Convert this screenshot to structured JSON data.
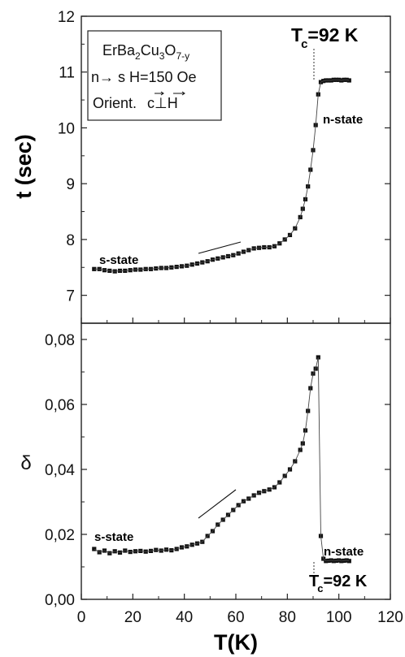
{
  "chart_data": [
    {
      "type": "scatter",
      "panel": "top",
      "ylabel": "t (sec)",
      "xlim": [
        0,
        120
      ],
      "ylim": [
        6.5,
        12
      ],
      "yticks": [
        "7",
        "8",
        "9",
        "10",
        "11",
        "12"
      ],
      "annotations": {
        "tc_main": "T",
        "tc_sub": "c",
        "tc_value": "=92 K",
        "s_state": "s-state",
        "n_state": "n-state",
        "box_line1_a": "ErBa",
        "box_line1_b": "2",
        "box_line1_c": "Cu",
        "box_line1_d": "3",
        "box_line1_e": "O",
        "box_line1_f": "7-y",
        "box_line2": "n→ s  H=150 Oe",
        "box_line3_a": "Orient.",
        "box_line3_c": "c",
        "box_line3_perp": "⊥",
        "box_line3_h": "H"
      },
      "series": [
        {
          "x": [
            5,
            7,
            9,
            11,
            13,
            15,
            17,
            19,
            21,
            23,
            25,
            27,
            29,
            31,
            33,
            35,
            37,
            39,
            41,
            43,
            45,
            47,
            49,
            51,
            53,
            55,
            57,
            59,
            61,
            63,
            65,
            67,
            69,
            71,
            73,
            75,
            77,
            79,
            81,
            83,
            85,
            86,
            87,
            88,
            89,
            90,
            91,
            92,
            93,
            94,
            95,
            96,
            97,
            98,
            99,
            100,
            101,
            102,
            103,
            104
          ],
          "y": [
            7.47,
            7.47,
            7.45,
            7.44,
            7.43,
            7.44,
            7.44,
            7.45,
            7.46,
            7.46,
            7.47,
            7.47,
            7.48,
            7.49,
            7.49,
            7.5,
            7.51,
            7.52,
            7.53,
            7.55,
            7.57,
            7.59,
            7.61,
            7.64,
            7.66,
            7.68,
            7.7,
            7.72,
            7.75,
            7.78,
            7.81,
            7.84,
            7.85,
            7.86,
            7.86,
            7.88,
            7.93,
            8.0,
            8.08,
            8.2,
            8.4,
            8.55,
            8.72,
            8.95,
            9.25,
            9.6,
            10.05,
            10.6,
            10.82,
            10.84,
            10.85,
            10.85,
            10.85,
            10.86,
            10.86,
            10.86,
            10.85,
            10.86,
            10.86,
            10.85
          ]
        }
      ]
    },
    {
      "type": "scatter",
      "panel": "bottom",
      "xlabel": "T(K)",
      "ylabel": "δ",
      "xlim": [
        0,
        120
      ],
      "ylim": [
        0,
        0.085
      ],
      "xticks": [
        "0",
        "20",
        "40",
        "60",
        "80",
        "100",
        "120"
      ],
      "yticks": [
        "0,00",
        "0,02",
        "0,04",
        "0,06",
        "0,08"
      ],
      "annotations": {
        "s_state": "s-state",
        "n_state": "n-state",
        "tc_main": "T",
        "tc_sub": "c",
        "tc_value": "=92 K"
      },
      "series": [
        {
          "x": [
            5,
            7,
            9,
            11,
            13,
            15,
            17,
            19,
            21,
            23,
            25,
            27,
            29,
            31,
            33,
            35,
            37,
            39,
            41,
            43,
            45,
            47,
            49,
            51,
            53,
            55,
            57,
            59,
            61,
            63,
            65,
            67,
            69,
            71,
            73,
            75,
            77,
            79,
            81,
            83,
            85,
            86,
            87,
            88,
            89,
            90,
            91,
            92,
            93,
            94,
            95,
            96,
            97,
            98,
            99,
            100,
            101,
            102,
            103,
            104
          ],
          "y": [
            0.0155,
            0.0145,
            0.015,
            0.0142,
            0.0148,
            0.0144,
            0.015,
            0.0146,
            0.0148,
            0.0149,
            0.0147,
            0.0149,
            0.0152,
            0.015,
            0.0153,
            0.0151,
            0.0155,
            0.016,
            0.0163,
            0.0168,
            0.0172,
            0.0177,
            0.0195,
            0.021,
            0.023,
            0.0245,
            0.026,
            0.0275,
            0.029,
            0.0302,
            0.031,
            0.032,
            0.0328,
            0.0333,
            0.0338,
            0.0345,
            0.036,
            0.038,
            0.04,
            0.0425,
            0.046,
            0.048,
            0.052,
            0.058,
            0.065,
            0.0695,
            0.071,
            0.0745,
            0.0195,
            0.0125,
            0.0118,
            0.0119,
            0.012,
            0.0118,
            0.0119,
            0.012,
            0.0118,
            0.0119,
            0.012,
            0.0118
          ]
        }
      ]
    }
  ]
}
